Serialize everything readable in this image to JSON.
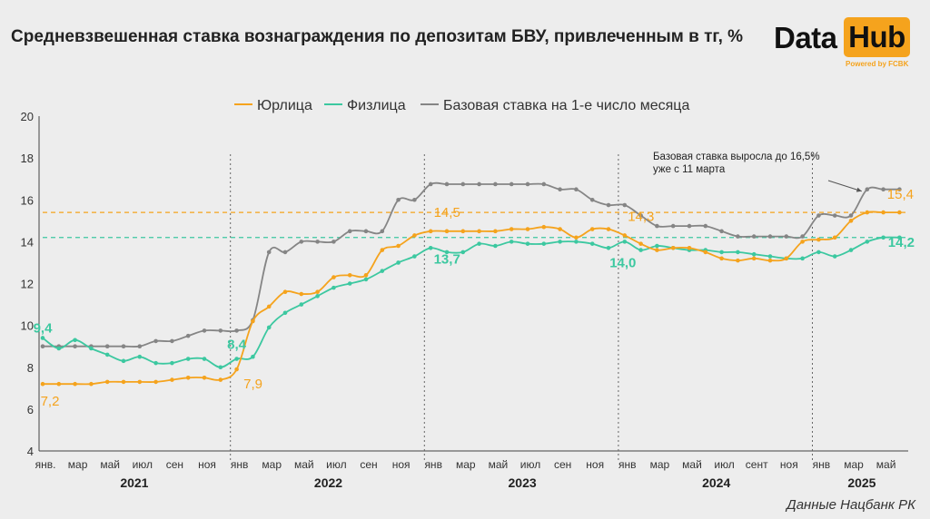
{
  "header": {
    "title": "Средневзвешенная ставка вознаграждения по депозитам БВУ, привлеченным в тг, %"
  },
  "logo": {
    "word1": "Data",
    "word2": "Hub",
    "tagline": "Powered by FCBK"
  },
  "source": "Данные Нацбанк РК",
  "colors": {
    "legal": "#f5a31d",
    "individuals": "#3cc8a0",
    "base": "#858585",
    "text": "#222222",
    "background": "#ededed"
  },
  "chart_data": {
    "type": "line",
    "x": [
      "янв. 2021",
      "фев 2021",
      "мар 2021",
      "апр 2021",
      "май 2021",
      "июн 2021",
      "июл 2021",
      "авг 2021",
      "сен 2021",
      "окт 2021",
      "ноя 2021",
      "дек 2021",
      "янв 2022",
      "фев 2022",
      "мар 2022",
      "апр 2022",
      "май 2022",
      "июн 2022",
      "июл 2022",
      "авг 2022",
      "сен 2022",
      "окт 2022",
      "ноя 2022",
      "дек 2022",
      "янв 2023",
      "фев 2023",
      "мар 2023",
      "апр 2023",
      "май 2023",
      "июн 2023",
      "июл 2023",
      "авг 2023",
      "сен 2023",
      "окт 2023",
      "ноя 2023",
      "дек 2023",
      "янв 2024",
      "фев 2024",
      "мар 2024",
      "апр 2024",
      "май 2024",
      "июн 2024",
      "июл 2024",
      "авг 2024",
      "сент 2024",
      "окт 2024",
      "ноя 2024",
      "дек 2024",
      "янв 2025",
      "фев 2025",
      "мар 2025",
      "апр 2025",
      "май 2025",
      "июн 2025"
    ],
    "x_tick_labels": [
      "янв.",
      "мар",
      "май",
      "июл",
      "сен",
      "ноя",
      "янв",
      "мар",
      "май",
      "июл",
      "сен",
      "ноя",
      "янв",
      "мар",
      "май",
      "июл",
      "сен",
      "ноя",
      "янв",
      "мар",
      "май",
      "июл",
      "сент",
      "ноя",
      "янв",
      "мар",
      "май"
    ],
    "year_labels": [
      "2021",
      "2022",
      "2023",
      "2024",
      "2025"
    ],
    "series": [
      {
        "name": "Юрлица",
        "color": "#f5a31d",
        "values": [
          7.2,
          7.2,
          7.2,
          7.2,
          7.3,
          7.3,
          7.3,
          7.3,
          7.4,
          7.5,
          7.5,
          7.4,
          7.9,
          10.2,
          10.9,
          11.6,
          11.5,
          11.6,
          12.3,
          12.4,
          12.4,
          13.6,
          13.8,
          14.3,
          14.5,
          14.5,
          14.5,
          14.5,
          14.5,
          14.6,
          14.6,
          14.7,
          14.6,
          14.2,
          14.6,
          14.6,
          14.3,
          13.9,
          13.6,
          13.7,
          13.7,
          13.5,
          13.2,
          13.1,
          13.2,
          13.1,
          13.2,
          14.0,
          14.1,
          14.2,
          15.0,
          15.4,
          15.4,
          15.4
        ]
      },
      {
        "name": "Физлица",
        "color": "#3cc8a0",
        "values": [
          9.4,
          8.9,
          9.3,
          8.9,
          8.6,
          8.3,
          8.5,
          8.2,
          8.2,
          8.4,
          8.4,
          8.0,
          8.4,
          8.5,
          9.9,
          10.6,
          11.0,
          11.4,
          11.8,
          12.0,
          12.2,
          12.6,
          13.0,
          13.3,
          13.7,
          13.5,
          13.5,
          13.9,
          13.8,
          14.0,
          13.9,
          13.9,
          14.0,
          14.0,
          13.9,
          13.7,
          14.0,
          13.6,
          13.8,
          13.7,
          13.6,
          13.6,
          13.5,
          13.5,
          13.4,
          13.3,
          13.2,
          13.2,
          13.5,
          13.3,
          13.6,
          14.0,
          14.2,
          14.2
        ]
      },
      {
        "name": "Базовая ставка на 1-е число месяца",
        "color": "#858585",
        "values": [
          9.0,
          9.0,
          9.0,
          9.0,
          9.0,
          9.0,
          9.0,
          9.25,
          9.25,
          9.5,
          9.75,
          9.75,
          9.75,
          10.25,
          13.5,
          13.5,
          14.0,
          14.0,
          14.0,
          14.5,
          14.5,
          14.5,
          16.0,
          16.0,
          16.75,
          16.75,
          16.75,
          16.75,
          16.75,
          16.75,
          16.75,
          16.75,
          16.5,
          16.5,
          16.0,
          15.75,
          15.75,
          15.25,
          14.75,
          14.75,
          14.75,
          14.75,
          14.5,
          14.25,
          14.25,
          14.25,
          14.25,
          14.25,
          15.25,
          15.25,
          15.25,
          16.5,
          16.5,
          16.5
        ]
      }
    ],
    "ylim": [
      4,
      20
    ],
    "yticks": [
      4,
      6,
      8,
      10,
      12,
      14,
      16,
      18,
      20
    ],
    "xlabel": "",
    "ylabel": "",
    "legend_position": "top-center",
    "grid": false,
    "reference_lines": [
      {
        "name": "Юрлица",
        "value": 15.4,
        "color": "#f5a31d"
      },
      {
        "name": "Физлица",
        "value": 14.2,
        "color": "#3cc8a0"
      }
    ],
    "year_separators_after_index": [
      11,
      23,
      35,
      47
    ],
    "data_labels": [
      {
        "series": "Физлица",
        "index": 0,
        "text": "9,4"
      },
      {
        "series": "Юрлица",
        "index": 0,
        "text": "7,2"
      },
      {
        "series": "Физлица",
        "index": 12,
        "text": "8,4"
      },
      {
        "series": "Юрлица",
        "index": 12,
        "text": "7,9"
      },
      {
        "series": "Юрлица",
        "index": 24,
        "text": "14,5"
      },
      {
        "series": "Физлица",
        "index": 24,
        "text": "13,7"
      },
      {
        "series": "Юрлица",
        "index": 36,
        "text": "14,3"
      },
      {
        "series": "Физлица",
        "index": 36,
        "text": "14,0"
      },
      {
        "series": "Юрлица",
        "index": 53,
        "text": "15,4"
      },
      {
        "series": "Физлица",
        "index": 53,
        "text": "14,2"
      }
    ],
    "annotation": {
      "lines": [
        "Базовая ставка выросла до 16,5%",
        "уже с 11 марта"
      ],
      "points_to_index": 51
    }
  }
}
